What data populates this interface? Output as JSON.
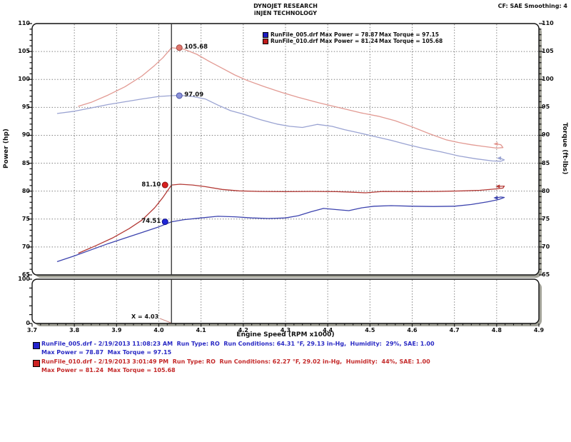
{
  "header": {
    "title_line1": "DYNOJET RESEARCH",
    "title_line2": "iNJEN TECHNOLOGY",
    "top_right": "CF: SAE  Smoothing: 4"
  },
  "legend": {
    "rows": [
      {
        "swatch": "#1c1cc0",
        "left": "RunFile_005.drf Max Power = 78.87",
        "right": "Max Torque = 97.15"
      },
      {
        "swatch": "#c01c1c",
        "left": "RunFile_010.drf Max Power = 81.24",
        "right": "Max Torque = 105.68"
      }
    ]
  },
  "chart_data": {
    "type": "line",
    "x_label": "Engine Speed (RPM x1000)",
    "y_left_label": "Power (hp)",
    "y_right_label": "Torque (ft-lbs)",
    "x_range": [
      3.7,
      4.9
    ],
    "y_range": [
      65,
      110
    ],
    "x_ticks": [
      "3.7",
      "3.8",
      "3.9",
      "4.0",
      "4.1",
      "4.2",
      "4.3",
      "4.4",
      "4.5",
      "4.6",
      "4.7",
      "4.8",
      "4.9"
    ],
    "y_ticks": [
      65,
      70,
      75,
      80,
      85,
      90,
      95,
      100,
      105,
      110
    ],
    "grid": "dotted gridlines at every major tick, both axes",
    "legend_position": "top-center",
    "cursor_x": 4.03,
    "cursor_label": "X = 4.03",
    "callouts": [
      {
        "text": "105.68",
        "value": 105.68,
        "side": "right",
        "dot_fill": "#e0766d",
        "dot_stroke": "#a34a44"
      },
      {
        "text": "97.09",
        "value": 97.09,
        "side": "right",
        "dot_fill": "#8b92da",
        "dot_stroke": "#4d55a8"
      },
      {
        "text": "81.10",
        "value": 81.1,
        "side": "left",
        "dot_fill": "#d81f1f",
        "dot_stroke": "#8a1010"
      },
      {
        "text": "74.51",
        "value": 74.51,
        "side": "left",
        "dot_fill": "#2026d8",
        "dot_stroke": "#10128a"
      }
    ],
    "series": [
      {
        "name": "RunFile_005.drf Power (hp)",
        "color": "#3c43ae",
        "axis": "left",
        "value_at_cursor": 74.51,
        "max": 78.87,
        "points": [
          [
            3.76,
            67.4
          ],
          [
            3.8,
            68.4
          ],
          [
            3.84,
            69.5
          ],
          [
            3.88,
            70.6
          ],
          [
            3.92,
            71.6
          ],
          [
            3.96,
            72.6
          ],
          [
            4.0,
            73.6
          ],
          [
            4.03,
            74.51
          ],
          [
            4.06,
            74.9
          ],
          [
            4.1,
            75.2
          ],
          [
            4.14,
            75.5
          ],
          [
            4.18,
            75.4
          ],
          [
            4.22,
            75.2
          ],
          [
            4.26,
            75.1
          ],
          [
            4.3,
            75.2
          ],
          [
            4.33,
            75.6
          ],
          [
            4.36,
            76.3
          ],
          [
            4.39,
            76.9
          ],
          [
            4.42,
            76.7
          ],
          [
            4.45,
            76.5
          ],
          [
            4.48,
            77.0
          ],
          [
            4.51,
            77.3
          ],
          [
            4.55,
            77.4
          ],
          [
            4.6,
            77.3
          ],
          [
            4.65,
            77.25
          ],
          [
            4.7,
            77.3
          ],
          [
            4.74,
            77.6
          ],
          [
            4.78,
            78.1
          ],
          [
            4.805,
            78.5
          ],
          [
            4.818,
            78.87
          ],
          [
            4.81,
            78.95
          ],
          [
            4.8,
            78.8
          ]
        ]
      },
      {
        "name": "RunFile_010.drf Power (hp)",
        "color": "#b43b37",
        "axis": "left",
        "value_at_cursor": 81.1,
        "max": 81.24,
        "points": [
          [
            3.81,
            68.9
          ],
          [
            3.85,
            70.2
          ],
          [
            3.89,
            71.6
          ],
          [
            3.93,
            73.3
          ],
          [
            3.96,
            74.8
          ],
          [
            3.99,
            77.0
          ],
          [
            4.01,
            78.9
          ],
          [
            4.03,
            81.1
          ],
          [
            4.05,
            81.24
          ],
          [
            4.08,
            81.1
          ],
          [
            4.11,
            80.8
          ],
          [
            4.15,
            80.3
          ],
          [
            4.19,
            80.05
          ],
          [
            4.24,
            79.95
          ],
          [
            4.3,
            79.9
          ],
          [
            4.36,
            79.95
          ],
          [
            4.42,
            79.9
          ],
          [
            4.46,
            79.8
          ],
          [
            4.49,
            79.7
          ],
          [
            4.53,
            79.95
          ],
          [
            4.6,
            79.9
          ],
          [
            4.66,
            79.95
          ],
          [
            4.72,
            80.05
          ],
          [
            4.76,
            80.15
          ],
          [
            4.8,
            80.4
          ],
          [
            4.815,
            80.55
          ],
          [
            4.818,
            80.9
          ],
          [
            4.805,
            80.85
          ]
        ]
      },
      {
        "name": "RunFile_005.drf Torque (ft-lbs)",
        "color": "#9aa3d2",
        "axis": "right",
        "value_at_cursor": 97.09,
        "max": 97.15,
        "points": [
          [
            3.76,
            93.9
          ],
          [
            3.8,
            94.3
          ],
          [
            3.84,
            94.9
          ],
          [
            3.88,
            95.5
          ],
          [
            3.92,
            96.0
          ],
          [
            3.96,
            96.5
          ],
          [
            4.0,
            96.95
          ],
          [
            4.03,
            97.09
          ],
          [
            4.05,
            97.15
          ],
          [
            4.08,
            96.95
          ],
          [
            4.11,
            96.5
          ],
          [
            4.14,
            95.4
          ],
          [
            4.17,
            94.4
          ],
          [
            4.2,
            93.8
          ],
          [
            4.24,
            92.8
          ],
          [
            4.28,
            92.0
          ],
          [
            4.31,
            91.6
          ],
          [
            4.34,
            91.4
          ],
          [
            4.375,
            91.95
          ],
          [
            4.41,
            91.6
          ],
          [
            4.44,
            91.0
          ],
          [
            4.47,
            90.5
          ],
          [
            4.51,
            89.8
          ],
          [
            4.55,
            89.1
          ],
          [
            4.59,
            88.3
          ],
          [
            4.63,
            87.6
          ],
          [
            4.67,
            87.0
          ],
          [
            4.71,
            86.3
          ],
          [
            4.75,
            85.8
          ],
          [
            4.79,
            85.4
          ],
          [
            4.81,
            85.35
          ],
          [
            4.818,
            85.6
          ],
          [
            4.808,
            85.9
          ]
        ]
      },
      {
        "name": "RunFile_010.drf Torque (ft-lbs)",
        "color": "#e29a93",
        "axis": "right",
        "value_at_cursor": 105.68,
        "max": 105.68,
        "points": [
          [
            3.81,
            95.2
          ],
          [
            3.84,
            95.9
          ],
          [
            3.88,
            97.2
          ],
          [
            3.92,
            98.7
          ],
          [
            3.96,
            100.6
          ],
          [
            3.99,
            102.5
          ],
          [
            4.01,
            103.9
          ],
          [
            4.03,
            105.68
          ],
          [
            4.06,
            105.4
          ],
          [
            4.09,
            104.5
          ],
          [
            4.12,
            103.2
          ],
          [
            4.15,
            102.0
          ],
          [
            4.18,
            100.8
          ],
          [
            4.21,
            99.8
          ],
          [
            4.25,
            98.7
          ],
          [
            4.29,
            97.7
          ],
          [
            4.33,
            96.8
          ],
          [
            4.38,
            95.8
          ],
          [
            4.43,
            94.9
          ],
          [
            4.48,
            94.0
          ],
          [
            4.52,
            93.4
          ],
          [
            4.56,
            92.6
          ],
          [
            4.6,
            91.5
          ],
          [
            4.64,
            90.3
          ],
          [
            4.68,
            89.2
          ],
          [
            4.71,
            88.7
          ],
          [
            4.74,
            88.3
          ],
          [
            4.77,
            88.0
          ],
          [
            4.8,
            87.7
          ],
          [
            4.815,
            87.8
          ],
          [
            4.81,
            88.3
          ],
          [
            4.8,
            88.45
          ]
        ]
      }
    ],
    "lower_panel": {
      "y_range": [
        0,
        100
      ],
      "y_ticks": [
        0,
        100
      ],
      "series": []
    }
  },
  "runs": [
    {
      "color": "#2a2ac4",
      "swatch": "#2222cc",
      "line1": "RunFile_005.drf - 2/19/2013 11:08:23 AM  Run Type: RO  Run Conditions: 64.31 °F, 29.13 in-Hg,  Humidity:  29%, SAE: 1.00",
      "line2": "Max Power = 78.87  Max Torque = 97.15"
    },
    {
      "color": "#c42a2a",
      "swatch": "#cc2222",
      "line1": "RunFile_010.drf - 2/19/2013 3:01:49 PM  Run Type: RO  Run Conditions: 62.27 °F, 29.02 in-Hg,  Humidity:  44%, SAE: 1.00",
      "line2": "Max Power = 81.24  Max Torque = 105.68"
    }
  ]
}
